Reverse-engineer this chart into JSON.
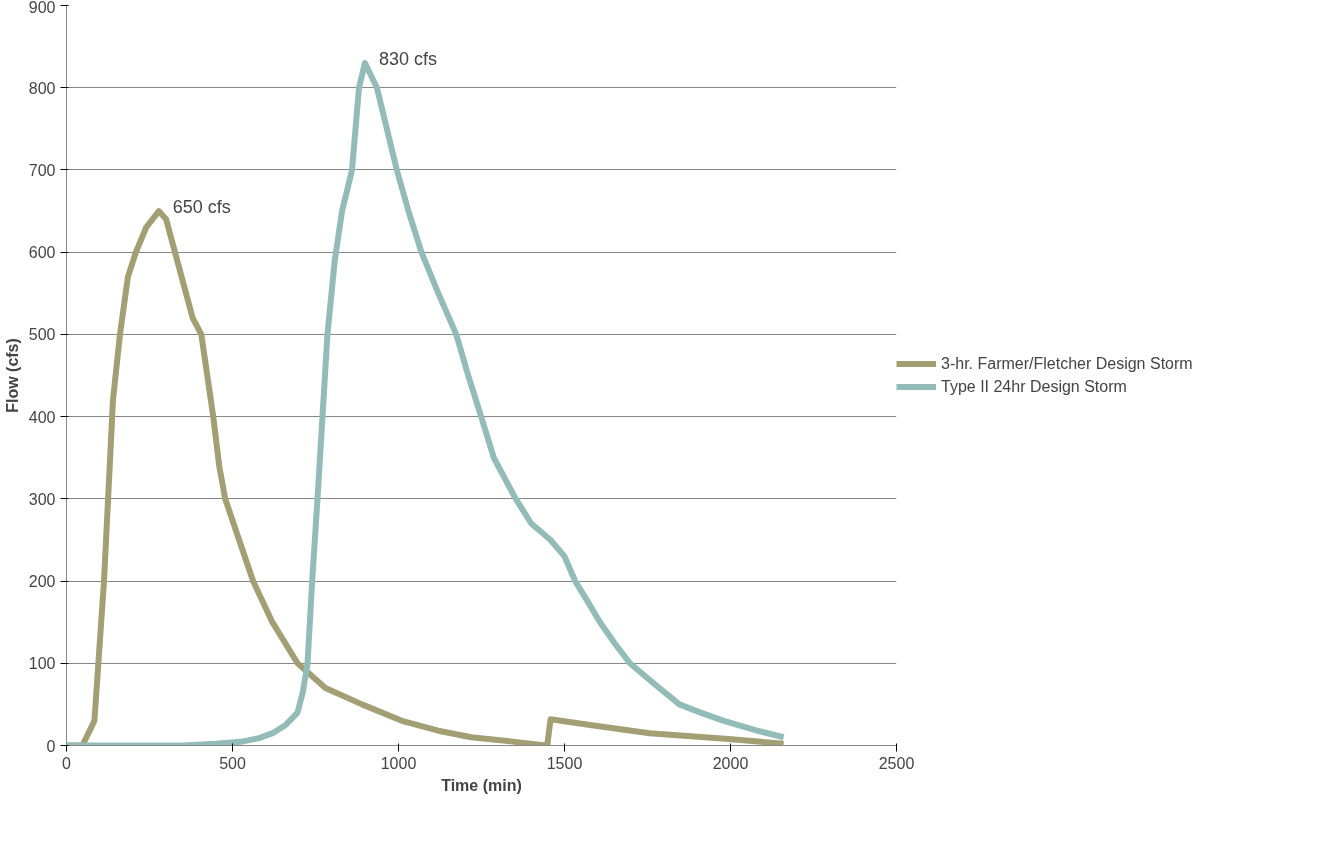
{
  "chart_data": {
    "type": "line",
    "xlabel": "Time (min)",
    "ylabel": "Flow (cfs)",
    "xlim": [
      0,
      2500
    ],
    "xticks": [
      0,
      500,
      1000,
      1500,
      2000,
      2500
    ],
    "ylim": [
      0,
      900
    ],
    "yticks": [
      0,
      100,
      200,
      300,
      400,
      500,
      600,
      700,
      800,
      900
    ],
    "grid": "y",
    "legend": "right",
    "marker": "none",
    "line_style": "solid",
    "series": [
      {
        "name": "3-hr. Farmer/Fletcher Design Storm",
        "color": "#a29f74",
        "x": [
          0,
          48,
          84,
          113,
          140,
          161,
          185,
          209,
          240,
          278,
          300,
          340,
          380,
          406,
          424,
          442,
          460,
          478,
          520,
          562,
          620,
          696,
          780,
          890,
          1010,
          1120,
          1219,
          1338,
          1443,
          1448,
          1458,
          1577,
          1756,
          1995,
          2160
        ],
        "values": [
          0,
          0,
          30,
          200,
          420,
          500,
          570,
          600,
          630,
          650,
          640,
          580,
          520,
          500,
          450,
          400,
          340,
          300,
          250,
          200,
          150,
          100,
          70,
          50,
          30,
          18,
          10,
          5,
          0,
          0,
          32,
          25,
          15,
          8,
          2
        ]
      },
      {
        "name": "Type II 24hr Design Storm",
        "color": "#93bcb9",
        "x": [
          0,
          352,
          450,
          532,
          580,
          621,
          660,
          696,
          712,
          726,
          740,
          756,
          771,
          786,
          808,
          830,
          860,
          881,
          899,
          935,
          965,
          995,
          1030,
          1069,
          1120,
          1174,
          1210,
          1249,
          1287,
          1353,
          1400,
          1458,
          1500,
          1532,
          1570,
          1607,
          1650,
          1697,
          1770,
          1846,
          1910,
          1980,
          2080,
          2160
        ],
        "values": [
          0,
          0,
          2,
          5,
          9,
          15,
          25,
          40,
          65,
          100,
          200,
          300,
          400,
          500,
          590,
          650,
          700,
          800,
          830,
          800,
          750,
          700,
          650,
          600,
          550,
          500,
          450,
          400,
          350,
          300,
          270,
          250,
          230,
          200,
          175,
          150,
          125,
          100,
          75,
          50,
          40,
          30,
          18,
          10
        ]
      }
    ],
    "annotations": [
      {
        "text": "650 cfs",
        "x": 278,
        "y": 650
      },
      {
        "text": "830 cfs",
        "x": 899,
        "y": 830
      }
    ]
  }
}
